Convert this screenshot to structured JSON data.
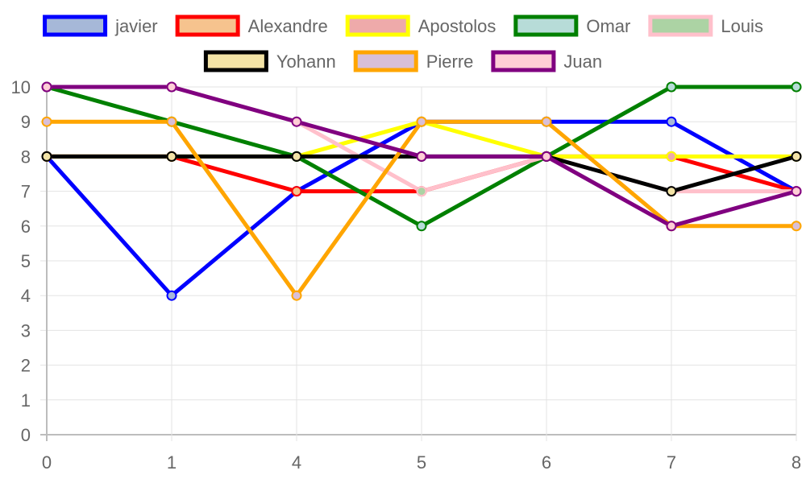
{
  "chart_data": {
    "type": "line",
    "categories": [
      "0",
      "1",
      "4",
      "5",
      "6",
      "7",
      "8"
    ],
    "ylim": [
      0,
      10
    ],
    "yticks": [
      0,
      1,
      2,
      3,
      4,
      5,
      6,
      7,
      8,
      9,
      10
    ],
    "grid": true,
    "legend_position": "top",
    "series": [
      {
        "name": "javier",
        "values": [
          8,
          4,
          7,
          9,
          9,
          9,
          7
        ],
        "line_color": "#0000ff",
        "marker_fill": "#a6b8d8"
      },
      {
        "name": "Alexandre",
        "values": [
          8,
          8,
          7,
          7,
          8,
          8,
          7
        ],
        "line_color": "#ff0000",
        "marker_fill": "#f6c38e"
      },
      {
        "name": "Apostolos",
        "values": [
          8,
          8,
          8,
          9,
          8,
          8,
          8
        ],
        "line_color": "#ffff00",
        "marker_fill": "#eeaaaa"
      },
      {
        "name": "Omar",
        "values": [
          10,
          9,
          8,
          6,
          8,
          10,
          10
        ],
        "line_color": "#008000",
        "marker_fill": "#b7dcd8"
      },
      {
        "name": "Louis",
        "values": [
          10,
          10,
          9,
          7,
          8,
          7,
          7
        ],
        "line_color": "#ffc0cb",
        "marker_fill": "#acd3a4"
      },
      {
        "name": "Yohann",
        "values": [
          8,
          8,
          8,
          8,
          8,
          7,
          8
        ],
        "line_color": "#000000",
        "marker_fill": "#f3e3a6"
      },
      {
        "name": "Pierre",
        "values": [
          9,
          9,
          4,
          9,
          9,
          6,
          6
        ],
        "line_color": "#ffa500",
        "marker_fill": "#d8bfd8"
      },
      {
        "name": "Juan",
        "values": [
          10,
          10,
          9,
          8,
          8,
          6,
          7
        ],
        "line_color": "#800080",
        "marker_fill": "#ffcdd6"
      }
    ]
  }
}
